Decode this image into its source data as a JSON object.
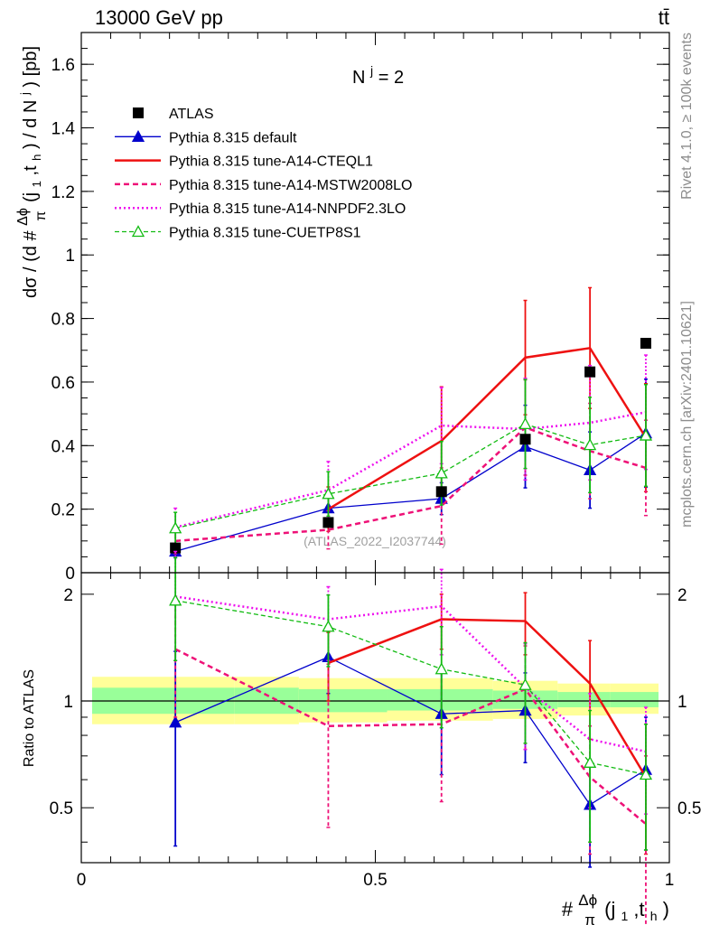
{
  "header": {
    "left": "13000 GeV pp",
    "right": "tt̄"
  },
  "side_labels": {
    "rivet": "Rivet 4.1.0, ≥ 100k events",
    "mcplots": "mcplots.cern.ch [arXiv:2401.10621]"
  },
  "watermark": "(ATLAS_2022_I2037744)",
  "annotation": {
    "n": "N",
    "sup": "j",
    "rest": " = 2"
  },
  "y_main_label": {
    "pre": "dσ / (d #",
    "frac_num": "Δϕ",
    "frac_den": "π",
    "mid": "(j",
    "s1": "1",
    "comma": ",t",
    "s2": "h",
    "close": ") / d N",
    "sup": "j",
    "unit": ") [pb]"
  },
  "y_ratio_label": "Ratio to ATLAS",
  "x_label": {
    "pre": "#",
    "frac_num": "Δϕ",
    "frac_den": "π",
    "mid": "(j",
    "s1": "1",
    "comma": ",t",
    "s2": "h",
    "close": ")"
  },
  "colors": {
    "data": "#000000",
    "default": "#0000cc",
    "cteql1": "#ee1111",
    "mstw": "#ee1177",
    "nnpdf": "#ee11ee",
    "cuetp": "#11bb11",
    "band_yellow": "#ffff99",
    "band_green": "#99ff99"
  },
  "chart_data": [
    {
      "panel": "main",
      "type": "line",
      "xlim": [
        0,
        1
      ],
      "ylim": [
        0,
        1.7
      ],
      "yticks": [
        "0",
        "0.2",
        "0.4",
        "0.6",
        "0.8",
        "1",
        "1.2",
        "1.4",
        "1.6"
      ],
      "ytick_values": [
        0,
        0.2,
        0.4,
        0.6,
        0.8,
        1.0,
        1.2,
        1.4,
        1.6
      ],
      "x": [
        0.16,
        0.42,
        0.6125,
        0.755,
        0.865,
        0.96
      ],
      "bin_edges": [
        0.0,
        0.32,
        0.52,
        0.69,
        0.81,
        0.92,
        1.0
      ],
      "series": [
        {
          "name": "ATLAS",
          "key": "data",
          "style": "data",
          "values": [
            0.078,
            0.158,
            0.255,
            0.42,
            0.632,
            0.722
          ]
        },
        {
          "name": "Pythia 8.315 default",
          "key": "default",
          "style": "tri-full",
          "values": [
            0.067,
            0.203,
            0.233,
            0.397,
            0.323,
            0.439
          ],
          "err": [
            0.02,
            0.04,
            0.05,
            0.13,
            0.12,
            0.17
          ]
        },
        {
          "name": "Pythia 8.315 tune-A14-CTEQL1",
          "key": "cteql1",
          "style": "solid",
          "values": [
            null,
            0.2,
            0.415,
            0.677,
            0.707,
            0.425
          ],
          "err": [
            null,
            0.07,
            0.17,
            0.18,
            0.19,
            0.17
          ]
        },
        {
          "name": "Pythia 8.315 tune-A14-MSTW2008LO",
          "key": "mstw",
          "style": "dashed",
          "values": [
            0.1,
            0.135,
            0.21,
            0.457,
            0.383,
            0.33
          ],
          "err": [
            0.04,
            0.06,
            0.12,
            0.15,
            0.15,
            0.15
          ]
        },
        {
          "name": "Pythia 8.315 tune-A14-NNPDF2.3LO",
          "key": "nnpdf",
          "style": "dotted",
          "values": [
            0.143,
            0.26,
            0.463,
            0.452,
            0.472,
            0.505
          ],
          "err": [
            0.06,
            0.09,
            0.12,
            0.16,
            0.18,
            0.18
          ]
        },
        {
          "name": "Pythia 8.315 tune-CUETP8S1",
          "key": "cuetp",
          "style": "tri-open",
          "values": [
            0.14,
            0.248,
            0.313,
            0.468,
            0.402,
            0.432
          ],
          "err": [
            0.05,
            0.07,
            0.1,
            0.14,
            0.15,
            0.16
          ]
        }
      ]
    },
    {
      "panel": "ratio",
      "type": "line",
      "xlim": [
        0,
        1
      ],
      "ylim": [
        0.35,
        2.3
      ],
      "xticks": [
        "0",
        "0.5",
        "1"
      ],
      "xtick_values": [
        0,
        0.5,
        1
      ],
      "yticks": [
        "0.5",
        "1",
        "2"
      ],
      "ytick_values": [
        0.5,
        1,
        2
      ],
      "ylabel": "Ratio to ATLAS",
      "x": [
        0.16,
        0.42,
        0.6125,
        0.755,
        0.865,
        0.96
      ],
      "band_edges": [
        0.0,
        0.26,
        0.37,
        0.52,
        0.7,
        0.81,
        0.9,
        1.0
      ],
      "band_green": [
        [
          0.92,
          1.09
        ],
        [
          0.92,
          1.09
        ],
        [
          0.93,
          1.08
        ],
        [
          0.94,
          1.08
        ],
        [
          0.95,
          1.07
        ],
        [
          0.96,
          1.06
        ],
        [
          0.96,
          1.06
        ]
      ],
      "band_yellow": [
        [
          0.86,
          1.17
        ],
        [
          0.86,
          1.17
        ],
        [
          0.87,
          1.16
        ],
        [
          0.88,
          1.16
        ],
        [
          0.89,
          1.14
        ],
        [
          0.91,
          1.12
        ],
        [
          0.92,
          1.12
        ]
      ],
      "series": [
        {
          "name": "Pythia 8.315 default",
          "key": "default",
          "style": "tri-full",
          "values": [
            0.87,
            1.33,
            0.92,
            0.94,
            0.51,
            0.64
          ],
          "err": [
            [
              0.39,
              1.38
            ],
            [
              1.05,
              1.62
            ],
            [
              0.62,
              1.22
            ],
            [
              0.67,
              1.2
            ],
            [
              0.34,
              0.68
            ],
            [
              0.38,
              0.9
            ]
          ]
        },
        {
          "name": "Pythia 8.315 tune-A14-CTEQL1",
          "key": "cteql1",
          "style": "solid",
          "values": [
            null,
            1.28,
            1.7,
            1.68,
            1.12,
            0.61
          ],
          "err": [
            null,
            [
              1.0,
              1.56
            ],
            [
              1.4,
              2.0
            ],
            [
              1.35,
              2.02
            ],
            [
              0.78,
              1.48
            ],
            [
              0.37,
              0.86
            ]
          ]
        },
        {
          "name": "Pythia 8.315 tune-A14-MSTW2008LO",
          "key": "mstw",
          "style": "dashed",
          "values": [
            1.4,
            0.85,
            0.86,
            1.08,
            0.61,
            0.45
          ],
          "err": [
            [
              0.9,
              1.9
            ],
            [
              0.44,
              1.27
            ],
            [
              0.52,
              1.2
            ],
            [
              0.73,
              1.43
            ],
            [
              0.37,
              0.85
            ],
            [
              0.2,
              0.7
            ]
          ]
        },
        {
          "name": "Pythia 8.315 tune-A14-NNPDF2.3LO",
          "key": "nnpdf",
          "style": "dotted",
          "values": [
            1.97,
            1.7,
            1.85,
            1.09,
            0.78,
            0.72
          ],
          "err": [
            [
              1.3,
              2.64
            ],
            [
              1.3,
              2.1
            ],
            [
              1.35,
              2.35
            ],
            [
              0.73,
              1.45
            ],
            [
              0.5,
              1.05
            ],
            [
              0.48,
              0.96
            ]
          ]
        },
        {
          "name": "Pythia 8.315 tune-CUETP8S1",
          "key": "cuetp",
          "style": "tri-open",
          "values": [
            1.92,
            1.62,
            1.23,
            1.11,
            0.67,
            0.62
          ],
          "err": [
            [
              1.3,
              2.54
            ],
            [
              1.25,
              1.99
            ],
            [
              0.84,
              1.62
            ],
            [
              0.76,
              1.46
            ],
            [
              0.4,
              0.94
            ],
            [
              0.38,
              0.86
            ]
          ]
        }
      ]
    }
  ]
}
